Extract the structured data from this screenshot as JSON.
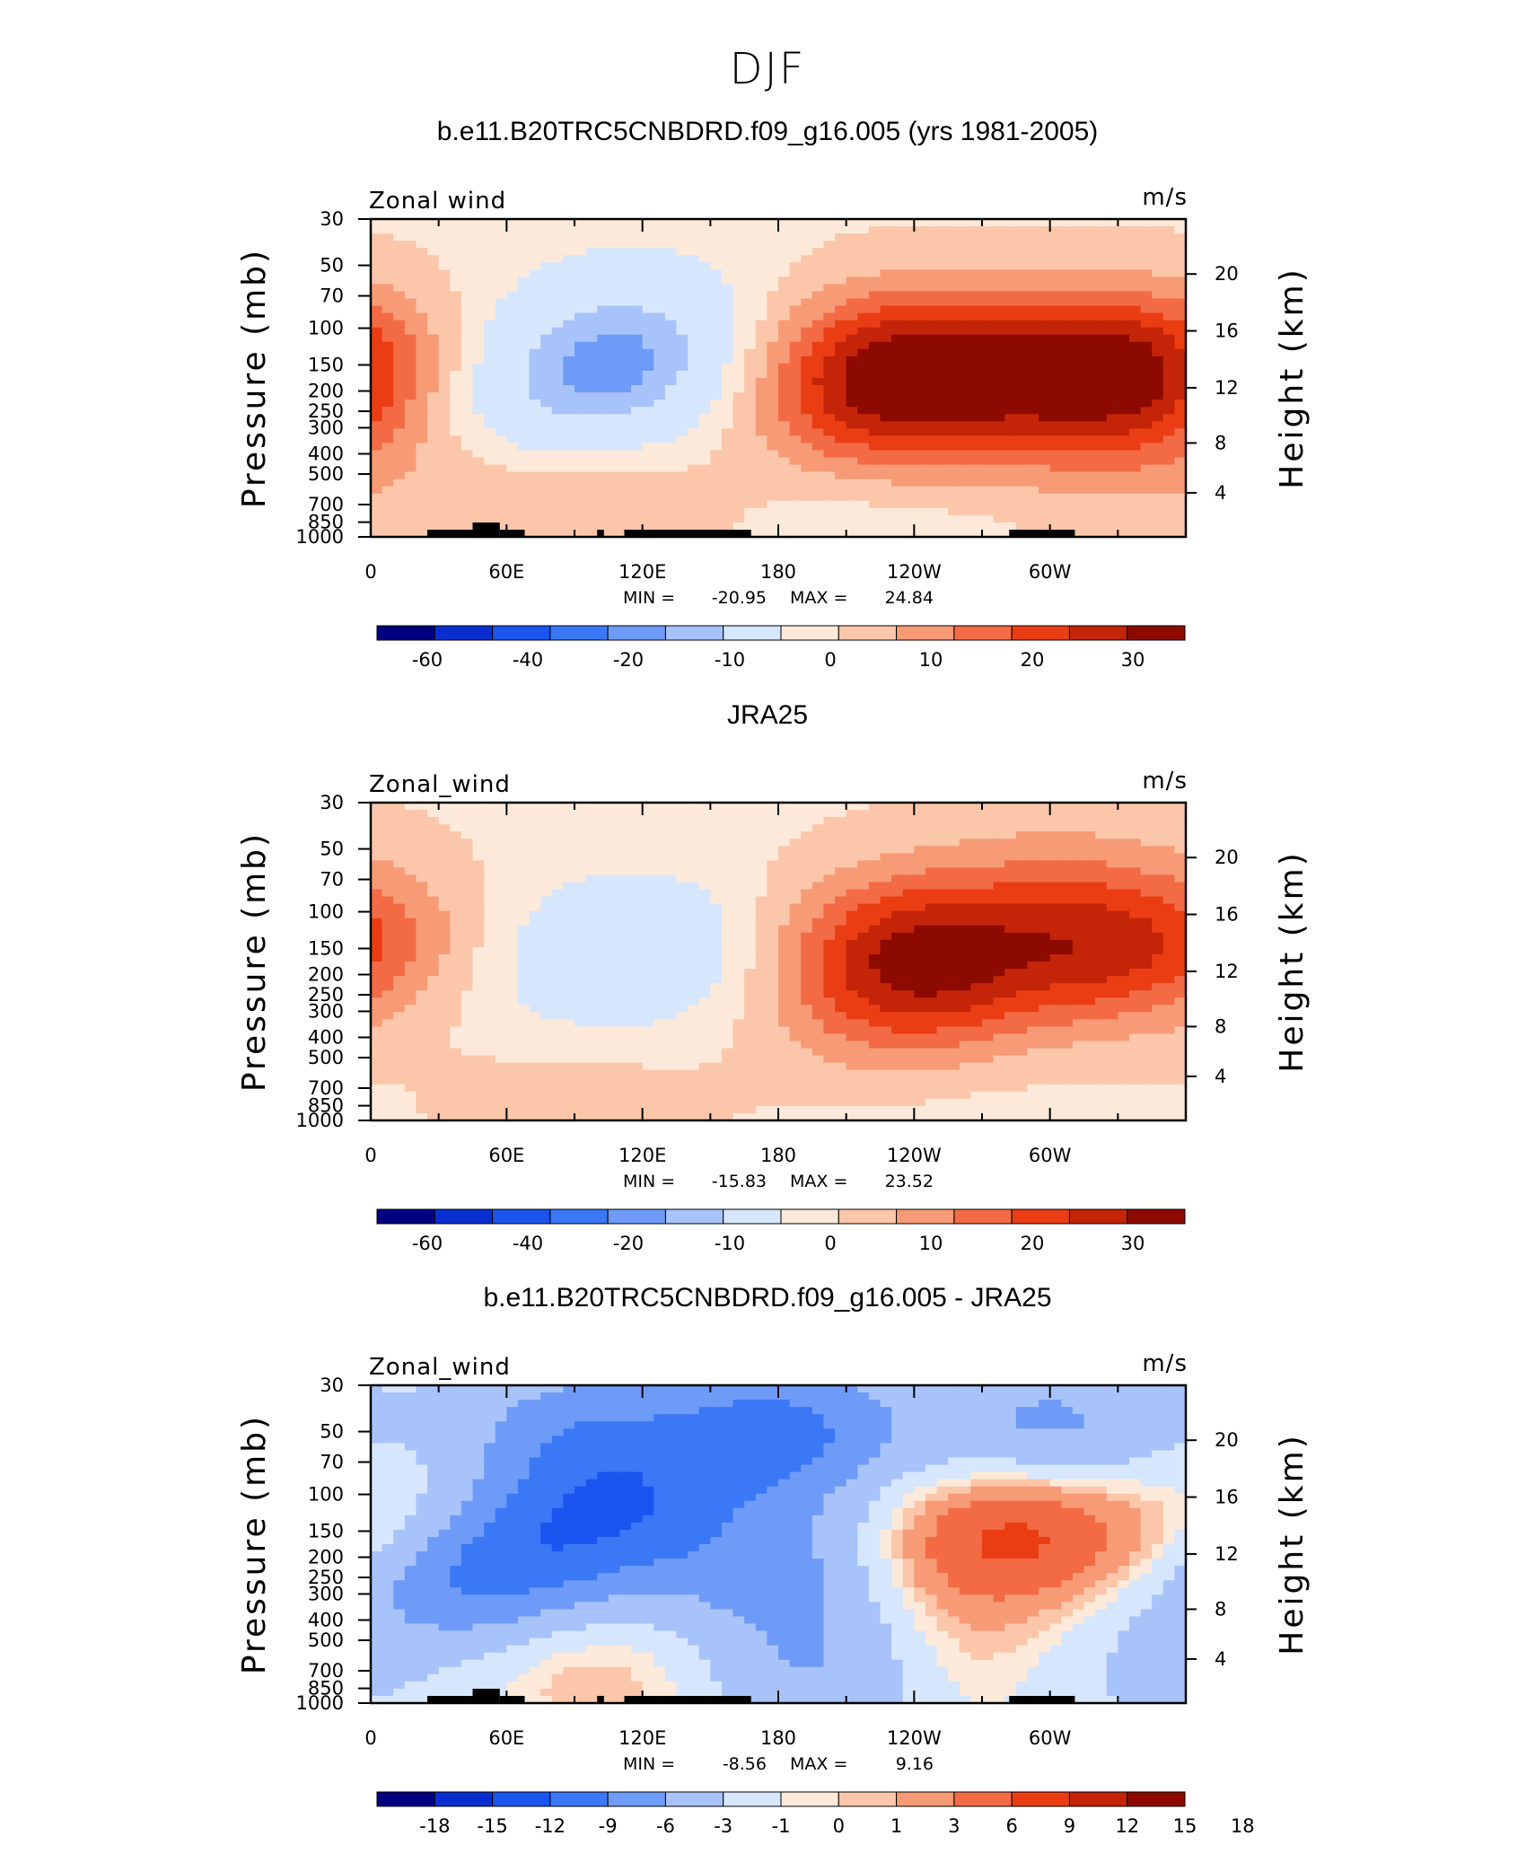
{
  "figure_title": "DJF",
  "chart_data": [
    {
      "type": "heatmap",
      "title": "b.e11.B20TRC5CNBDRD.f09_g16.005 (yrs 1981-2005)",
      "left_string": "Zonal wind",
      "right_string": "m/s",
      "ylabel": "Pressure (mb)",
      "ylabel_right": "Height (km)",
      "x_ticks": [
        "0",
        "60E",
        "120E",
        "180",
        "120W",
        "60W"
      ],
      "y_ticks": [
        "30",
        "50",
        "70",
        "100",
        "150",
        "200",
        "250",
        "300",
        "400",
        "500",
        "700",
        "850",
        "1000"
      ],
      "y2_ticks": [
        "20",
        "16",
        "12",
        "8",
        "4"
      ],
      "min_label": "MIN =",
      "min_value": "-20.95",
      "max_label": "MAX =",
      "max_value": "24.84",
      "colorbar_labels": [
        "-60",
        "-40",
        "-20",
        "-10",
        "0",
        "10",
        "20",
        "30"
      ],
      "blobs": [
        {
          "lon": 120,
          "p": 130,
          "v": -15
        },
        {
          "lon": 90,
          "p": 200,
          "v": -8
        },
        {
          "lon": 60,
          "p": 250,
          "v": -5
        },
        {
          "lon": 100,
          "p": 700,
          "v": 6
        },
        {
          "lon": 40,
          "p": 650,
          "v": 3
        },
        {
          "lon": 195,
          "p": 160,
          "v": 6
        },
        {
          "lon": 240,
          "p": 150,
          "v": 22
        },
        {
          "lon": 230,
          "p": 300,
          "v": 10
        },
        {
          "lon": 325,
          "p": 150,
          "v": 22
        },
        {
          "lon": 330,
          "p": 300,
          "v": 8
        },
        {
          "lon": 0,
          "p": 150,
          "v": 5
        },
        {
          "lon": 220,
          "p": 850,
          "v": -4
        },
        {
          "lon": 120,
          "p": 60,
          "v": -2
        }
      ]
    },
    {
      "type": "heatmap",
      "title": "JRA25",
      "left_string": "Zonal_wind",
      "right_string": "m/s",
      "ylabel": "Pressure (mb)",
      "ylabel_right": "Height (km)",
      "x_ticks": [
        "0",
        "60E",
        "120E",
        "180",
        "120W",
        "60W"
      ],
      "y_ticks": [
        "30",
        "50",
        "70",
        "100",
        "150",
        "200",
        "250",
        "300",
        "400",
        "500",
        "700",
        "850",
        "1000"
      ],
      "y2_ticks": [
        "20",
        "16",
        "12",
        "8",
        "4"
      ],
      "min_label": "MIN =",
      "min_value": "-15.83",
      "max_label": "MAX =",
      "max_value": "23.52",
      "colorbar_labels": [
        "-60",
        "-40",
        "-20",
        "-10",
        "0",
        "10",
        "20",
        "30"
      ],
      "blobs": [
        {
          "lon": 120,
          "p": 150,
          "v": -11
        },
        {
          "lon": 80,
          "p": 250,
          "v": -3
        },
        {
          "lon": 240,
          "p": 150,
          "v": 22
        },
        {
          "lon": 235,
          "p": 300,
          "v": 10
        },
        {
          "lon": 330,
          "p": 150,
          "v": 19
        },
        {
          "lon": 300,
          "p": 60,
          "v": 4
        },
        {
          "lon": 90,
          "p": 750,
          "v": 4
        },
        {
          "lon": 0,
          "p": 120,
          "v": 3
        },
        {
          "lon": 260,
          "p": 850,
          "v": -2
        }
      ]
    },
    {
      "type": "heatmap",
      "title": "b.e11.B20TRC5CNBDRD.f09_g16.005 - JRA25",
      "left_string": "Zonal_wind",
      "right_string": "m/s",
      "ylabel": "Pressure (mb)",
      "ylabel_right": "Height (km)",
      "x_ticks": [
        "0",
        "60E",
        "120E",
        "180",
        "120W",
        "60W"
      ],
      "y_ticks": [
        "30",
        "50",
        "70",
        "100",
        "150",
        "200",
        "250",
        "300",
        "400",
        "500",
        "700",
        "850",
        "1000"
      ],
      "y2_ticks": [
        "20",
        "16",
        "12",
        "8",
        "4"
      ],
      "min_label": "MIN =",
      "min_value": "-8.56",
      "max_label": "MAX =",
      "max_value": "9.16",
      "colorbar_labels": [
        "-18",
        "-15",
        "-12",
        "-9",
        "-6",
        "-3",
        "-1",
        "0",
        "1",
        "3",
        "6",
        "9",
        "12",
        "15",
        "18"
      ],
      "blobs": [
        {
          "lon": 180,
          "p": 50,
          "v": -8
        },
        {
          "lon": 90,
          "p": 50,
          "v": -5
        },
        {
          "lon": 300,
          "p": 50,
          "v": -5
        },
        {
          "lon": 110,
          "p": 120,
          "v": -7
        },
        {
          "lon": 60,
          "p": 200,
          "v": -6
        },
        {
          "lon": 30,
          "p": 280,
          "v": -4
        },
        {
          "lon": 170,
          "p": 250,
          "v": -3
        },
        {
          "lon": 210,
          "p": 200,
          "v": -3
        },
        {
          "lon": 290,
          "p": 150,
          "v": 7
        },
        {
          "lon": 250,
          "p": 200,
          "v": 4
        },
        {
          "lon": 15,
          "p": 150,
          "v": 3
        },
        {
          "lon": 100,
          "p": 750,
          "v": 3
        },
        {
          "lon": 270,
          "p": 650,
          "v": 3
        },
        {
          "lon": 200,
          "p": 700,
          "v": -4
        },
        {
          "lon": 320,
          "p": 700,
          "v": -2
        }
      ]
    }
  ]
}
